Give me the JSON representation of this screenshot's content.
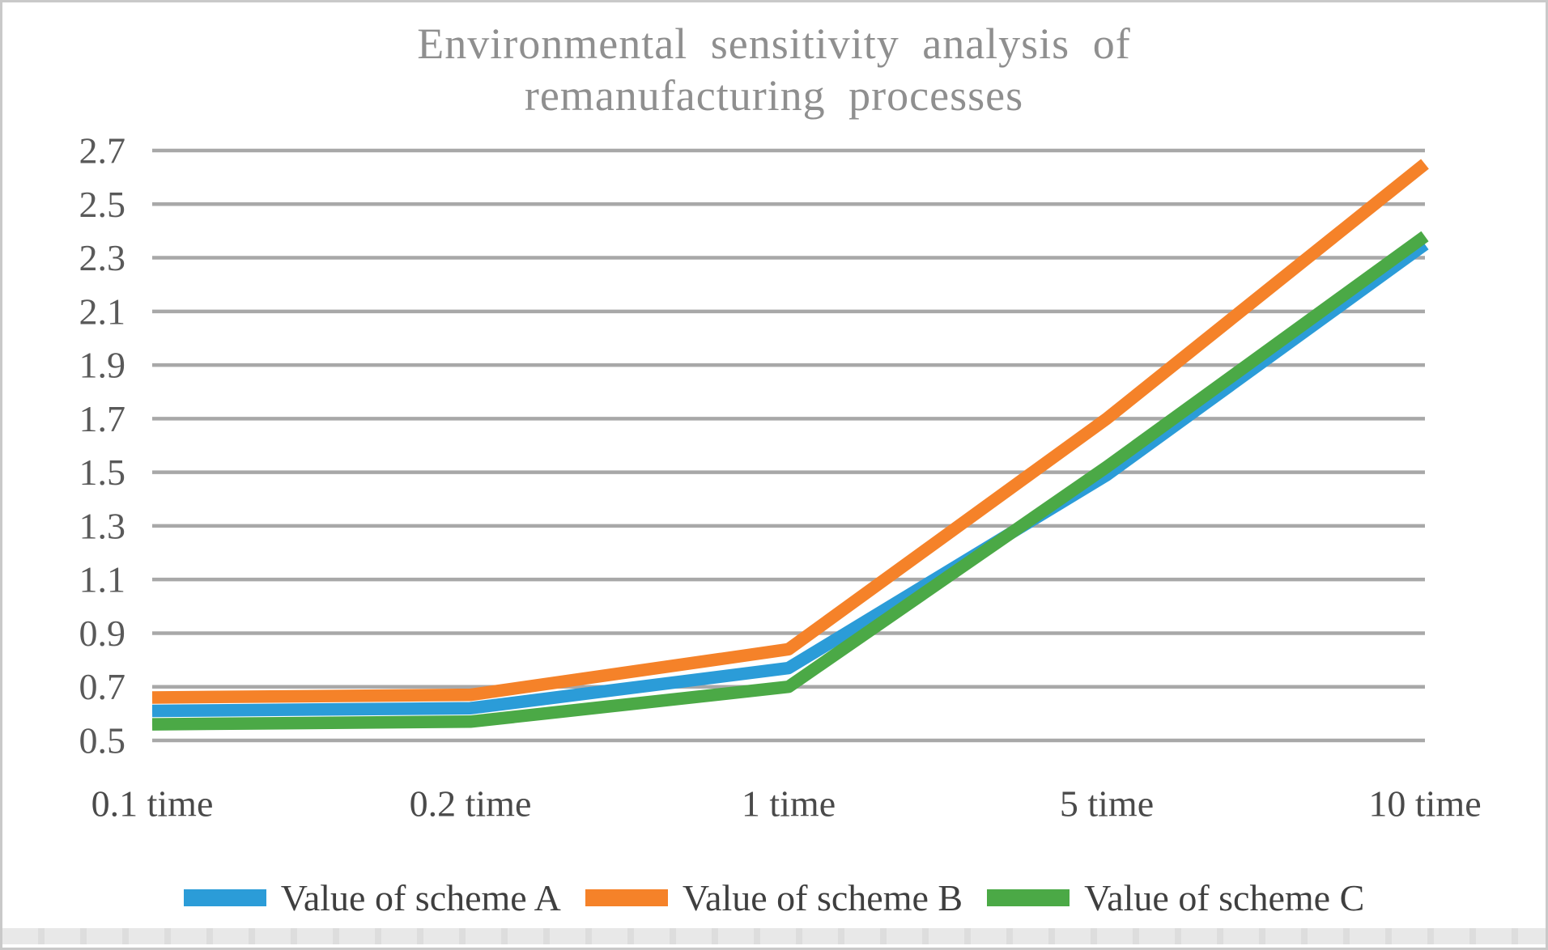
{
  "chart_data": {
    "type": "line",
    "title_lines": [
      "Environmental sensitivity analysis of",
      "remanufacturing processes"
    ],
    "categories": [
      "0.1 time",
      "0.2 time",
      "1 time",
      "5 time",
      "10 time"
    ],
    "series": [
      {
        "name": "Value of scheme A",
        "color": "#2B9CD8",
        "values": [
          0.61,
          0.62,
          0.77,
          1.49,
          2.35
        ]
      },
      {
        "name": "Value of scheme B",
        "color": "#F58229",
        "values": [
          0.66,
          0.67,
          0.84,
          1.7,
          2.65
        ]
      },
      {
        "name": "Value of scheme C",
        "color": "#4BA946",
        "values": [
          0.56,
          0.57,
          0.7,
          1.52,
          2.38
        ]
      }
    ],
    "y_axis": {
      "min": 0.5,
      "max": 2.7,
      "step": 0.2,
      "tick_labels": [
        "0.5",
        "0.7",
        "0.9",
        "1.1",
        "1.3",
        "1.5",
        "1.7",
        "1.9",
        "2.1",
        "2.3",
        "2.5",
        "2.7"
      ]
    },
    "grid": true,
    "legend_position": "bottom"
  },
  "colors": {
    "gridline": "#a8a8a8",
    "title_text": "#8f8f8f",
    "y_tick_text": "#595959",
    "x_label_text": "#4a4a4a",
    "legend_text": "#3f3f3f",
    "frame_border": "#c9c9c9"
  }
}
